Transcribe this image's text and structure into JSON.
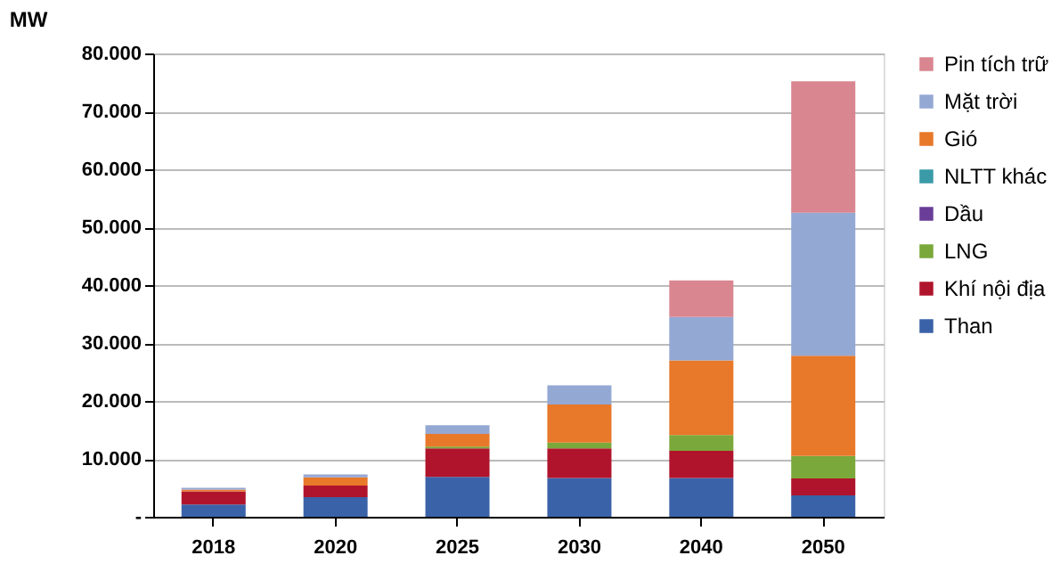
{
  "chart_data": {
    "type": "bar",
    "stacked": true,
    "ylabel": "MW",
    "categories": [
      "2018",
      "2020",
      "2025",
      "2030",
      "2040",
      "2050"
    ],
    "series": [
      {
        "name": "Than",
        "color": "#3a62a8",
        "values": [
          2100,
          3400,
          6900,
          6700,
          6700,
          3700
        ]
      },
      {
        "name": "Khí nội địa",
        "color": "#b0142c",
        "values": [
          2300,
          2000,
          4900,
          5100,
          4700,
          2900
        ]
      },
      {
        "name": "LNG",
        "color": "#7aa83a",
        "values": [
          0,
          0,
          300,
          1000,
          2700,
          3900
        ]
      },
      {
        "name": "Dầu",
        "color": "#6a3d98",
        "values": [
          0,
          0,
          0,
          0,
          0,
          0
        ]
      },
      {
        "name": "NLTT khác",
        "color": "#3a9aa8",
        "values": [
          0,
          0,
          0,
          0,
          0,
          0
        ]
      },
      {
        "name": "Gió",
        "color": "#e8782a",
        "values": [
          300,
          1400,
          2200,
          6600,
          12900,
          17300
        ]
      },
      {
        "name": "Mặt trời",
        "color": "#94a8d4",
        "values": [
          300,
          500,
          1500,
          3300,
          7500,
          24700
        ]
      },
      {
        "name": "Pin tích trữ",
        "color": "#d98690",
        "values": [
          0,
          0,
          0,
          0,
          6300,
          22700
        ]
      }
    ],
    "ylim": [
      0,
      80000
    ],
    "yticks": [
      {
        "value": 0,
        "label": "-"
      },
      {
        "value": 10000,
        "label": "10.000"
      },
      {
        "value": 20000,
        "label": "20.000"
      },
      {
        "value": 30000,
        "label": "30.000"
      },
      {
        "value": 40000,
        "label": "40.000"
      },
      {
        "value": 50000,
        "label": "50.000"
      },
      {
        "value": 60000,
        "label": "60.000"
      },
      {
        "value": 70000,
        "label": "70.000"
      },
      {
        "value": 80000,
        "label": "80.000"
      }
    ],
    "grid": "y",
    "legend": "right"
  }
}
